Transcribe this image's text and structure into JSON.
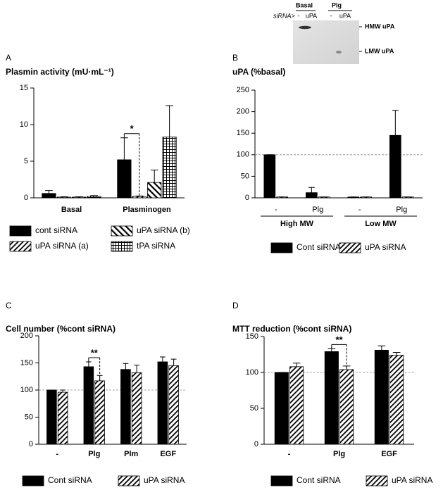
{
  "chart_data": [
    {
      "type": "bar",
      "panel_label": "A",
      "title": "Plasmin activity (mU·mL⁻¹)",
      "categories": [
        "Basal",
        "Plasminogen"
      ],
      "series": [
        {
          "name": "cont siRNA",
          "color": "#000000",
          "pattern": "solid",
          "values": [
            0.6,
            5.2
          ],
          "errors": [
            0.4,
            3.0
          ]
        },
        {
          "name": "uPA siRNA (a)",
          "color": "#000000",
          "pattern": "diag",
          "values": [
            0.1,
            0.2
          ],
          "errors": [
            0.05,
            0.05
          ]
        },
        {
          "name": "uPA siRNA (b)",
          "color": "#000000",
          "pattern": "back",
          "values": [
            0.1,
            2.1
          ],
          "errors": [
            0.05,
            1.7
          ]
        },
        {
          "name": "tPA siRNA",
          "color": "#000000",
          "pattern": "grid",
          "values": [
            0.2,
            8.3
          ],
          "errors": [
            0.1,
            4.3
          ]
        }
      ],
      "ylim": [
        0,
        15
      ],
      "yticks": [
        0,
        5,
        10,
        15
      ],
      "significance": {
        "label": "*",
        "category": "Plasminogen"
      }
    },
    {
      "type": "bar",
      "panel_label": "B",
      "title": "uPA (%basal)",
      "categories": [
        "-",
        "Plg",
        "-",
        "Plg"
      ],
      "groups": [
        "High MW",
        "Low MW"
      ],
      "series": [
        {
          "name": "Cont siRNA",
          "color": "#000000",
          "pattern": "solid",
          "values": [
            100,
            12,
            2,
            145
          ],
          "errors": [
            0,
            12,
            0,
            58
          ]
        },
        {
          "name": "uPA siRNA",
          "color": "#000000",
          "pattern": "diag",
          "values": [
            2,
            2,
            2,
            2
          ],
          "errors": [
            0,
            0,
            0,
            0
          ]
        }
      ],
      "ylim": [
        0,
        250
      ],
      "yticks": [
        0,
        50,
        100,
        150,
        200,
        250
      ],
      "ref_line": 100,
      "inset": {
        "groups": [
          "Basal",
          "Plg"
        ],
        "row_label": "siRNA>",
        "lanes": [
          "-",
          "uPA",
          "-",
          "uPA"
        ],
        "bands": [
          "HMW uPA",
          "LMW uPA"
        ]
      }
    },
    {
      "type": "bar",
      "panel_label": "C",
      "title": "Cell number (%cont siRNA)",
      "categories": [
        "-",
        "Plg",
        "Plm",
        "EGF"
      ],
      "series": [
        {
          "name": "Cont siRNA",
          "color": "#000000",
          "pattern": "solid",
          "values": [
            100,
            143,
            138,
            152
          ],
          "errors": [
            0,
            9,
            11,
            9
          ]
        },
        {
          "name": "uPA siRNA",
          "color": "#000000",
          "pattern": "diag",
          "values": [
            96,
            117,
            132,
            145
          ],
          "errors": [
            4,
            10,
            14,
            12
          ]
        }
      ],
      "ylim": [
        0,
        200
      ],
      "yticks": [
        0,
        50,
        100,
        150,
        200
      ],
      "ref_line": 100,
      "significance": {
        "label": "**",
        "category": "Plg"
      }
    },
    {
      "type": "bar",
      "panel_label": "D",
      "title": "MTT reduction (%cont siRNA)",
      "categories": [
        "-",
        "Plg",
        "EGF"
      ],
      "series": [
        {
          "name": "Cont siRNA",
          "color": "#000000",
          "pattern": "solid",
          "values": [
            100,
            129,
            131
          ],
          "errors": [
            0,
            4,
            6
          ]
        },
        {
          "name": "uPA siRNA",
          "color": "#000000",
          "pattern": "diag",
          "values": [
            108,
            104,
            124
          ],
          "errors": [
            5,
            5,
            4
          ]
        }
      ],
      "ylim": [
        0,
        150
      ],
      "yticks": [
        0,
        50,
        100,
        150
      ],
      "ref_line": 100,
      "significance": {
        "label": "**",
        "category": "Plg"
      }
    }
  ]
}
